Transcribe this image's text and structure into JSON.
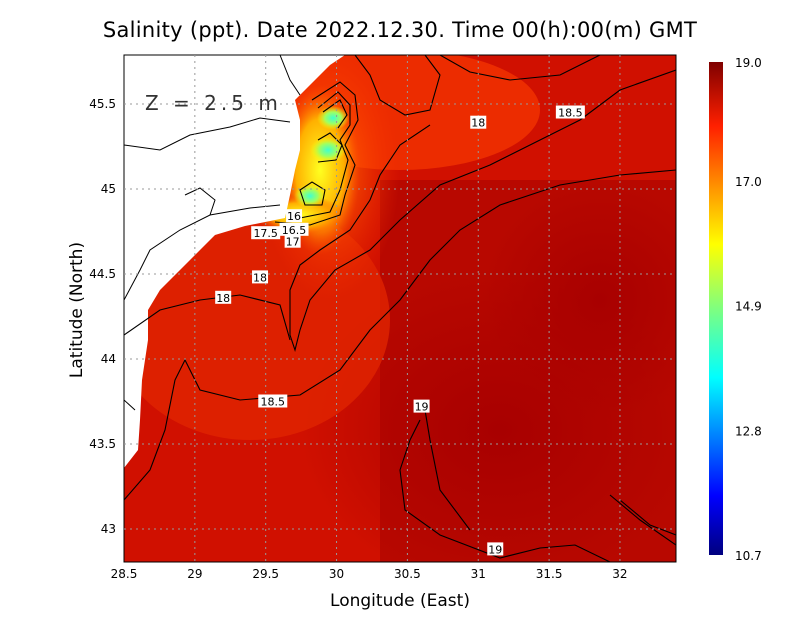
{
  "title": "Salinity (ppt). Date 2022.12.30. Time 00(h):00(m) GMT",
  "chart_data": {
    "type": "heatmap",
    "title": "Salinity (ppt). Date 2022.12.30. Time 00(h):00(m) GMT",
    "annotation": "Z = 2.5 m",
    "xlabel": "Longitude (East)",
    "ylabel": "Latitude (North)",
    "xlim": [
      28.5,
      32.4
    ],
    "ylim": [
      42.8,
      45.8
    ],
    "xticks": [
      "28.5",
      "29",
      "29.5",
      "30",
      "30.5",
      "31",
      "31.5",
      "32"
    ],
    "yticks": [
      "43",
      "43.5",
      "44",
      "44.5",
      "45",
      "45.5"
    ],
    "grid": true,
    "colorbar": {
      "min": 10.7,
      "max": 19.0,
      "ticks": [
        "10.7",
        "12.8",
        "14.9",
        "17.0",
        "19.0"
      ],
      "colormap": "jet",
      "placement": "right"
    },
    "contour_labels": [
      {
        "text": "18",
        "lon": 31.0,
        "lat": 45.39
      },
      {
        "text": "18.5",
        "lon": 31.65,
        "lat": 45.45
      },
      {
        "text": "16",
        "lon": 29.7,
        "lat": 44.84
      },
      {
        "text": "17.5",
        "lon": 29.5,
        "lat": 44.74
      },
      {
        "text": "16.5",
        "lon": 29.7,
        "lat": 44.76
      },
      {
        "text": "17",
        "lon": 29.69,
        "lat": 44.69
      },
      {
        "text": "18",
        "lon": 29.46,
        "lat": 44.48
      },
      {
        "text": "18",
        "lon": 29.2,
        "lat": 44.36
      },
      {
        "text": "18.5",
        "lon": 29.55,
        "lat": 43.75
      },
      {
        "text": "19",
        "lon": 30.6,
        "lat": 43.72
      },
      {
        "text": "19",
        "lon": 31.12,
        "lat": 42.88
      }
    ]
  }
}
